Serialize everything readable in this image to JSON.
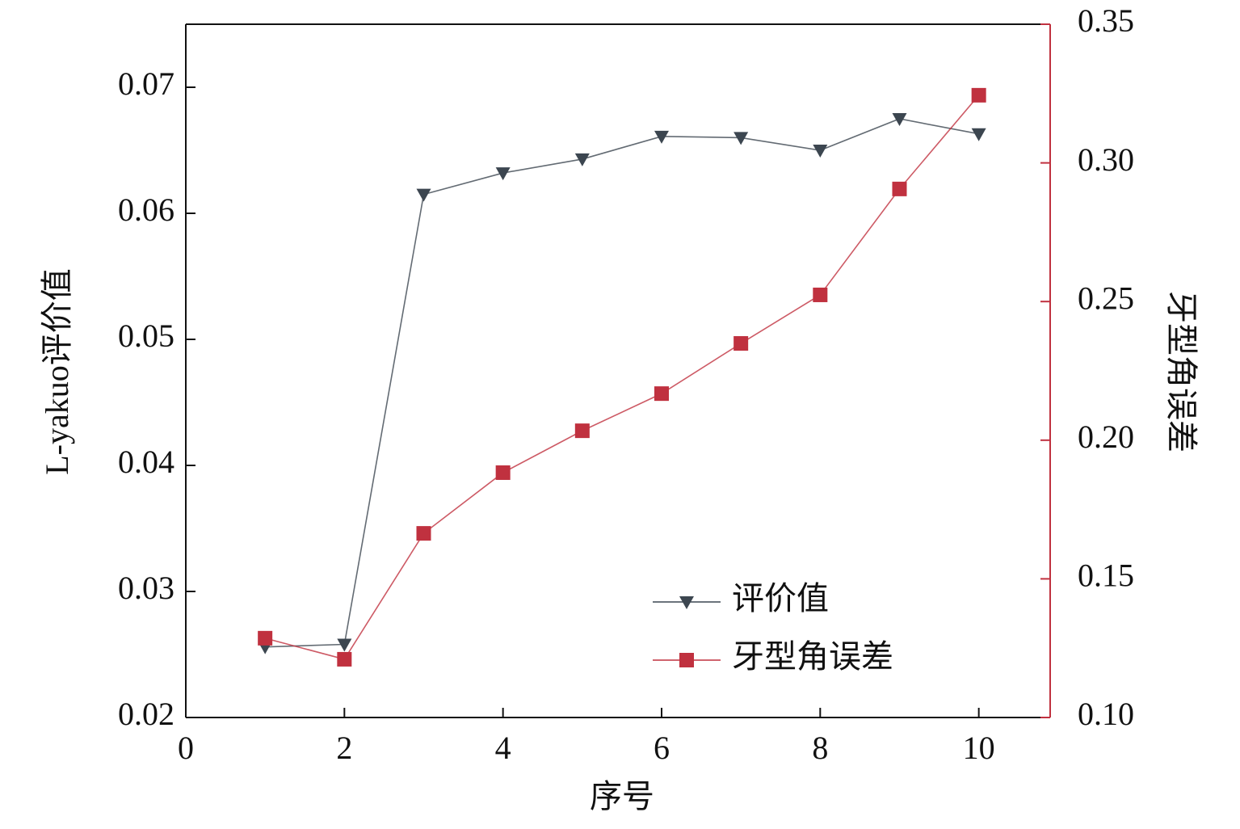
{
  "chart_data": {
    "type": "line",
    "x_label": "序号",
    "y_label": "L-yakuo评价值",
    "y2_label": "牙型角误差",
    "x": [
      1,
      2,
      3,
      4,
      5,
      6,
      7,
      8,
      9,
      10
    ],
    "series": [
      {
        "name": "评价值",
        "color": "#3c4650",
        "marker": "triangle-down",
        "values": [
          0.0256,
          0.0258,
          0.0615,
          0.0632,
          0.0643,
          0.0661,
          0.066,
          0.065,
          0.0675,
          0.0663
        ]
      },
      {
        "name": "牙型角误差",
        "color": "#c0313f",
        "marker": "square",
        "axis": "y2",
        "values": [
          0.1286,
          0.121,
          0.1664,
          0.1883,
          0.2034,
          0.2168,
          0.2349,
          0.2524,
          0.2906,
          0.3244
        ]
      }
    ],
    "xlim": [
      0,
      10.9
    ],
    "xticks": [
      0,
      2,
      4,
      6,
      8,
      10
    ],
    "ylim": [
      0.02,
      0.075
    ],
    "yticks": [
      0.02,
      0.03,
      0.04,
      0.05,
      0.06,
      0.07
    ],
    "y2lim": [
      0.1,
      0.35
    ],
    "y2ticks": [
      {
        "value": 0.1,
        "label": "0.10"
      },
      0.15,
      {
        "value": 0.2,
        "label": "0.20"
      },
      0.25,
      {
        "value": 0.3,
        "label": "0.30"
      },
      0.35
    ],
    "y2_axis_color": "#c0313f",
    "grid": false
  }
}
